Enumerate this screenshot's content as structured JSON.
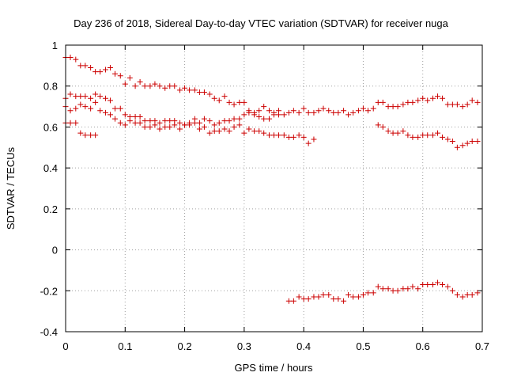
{
  "chart_data": {
    "type": "scatter",
    "title": "Day 236 of 2018, Sidereal Day-to-day VTEC variation (SDTVAR) for receiver nuga",
    "xlabel": "GPS time / hours",
    "ylabel": "SDTVAR / TECUs",
    "xlim": [
      0,
      0.7
    ],
    "ylim": [
      -0.4,
      1
    ],
    "xticks": [
      "0",
      "0.1",
      "0.2",
      "0.3",
      "0.4",
      "0.5",
      "0.6",
      "0.7"
    ],
    "yticks": [
      "-0.4",
      "-0.2",
      "0",
      "0.2",
      "0.4",
      "0.6",
      "0.8",
      "1"
    ],
    "grid": true,
    "marker": "+",
    "color": "#cc0000",
    "series": [
      {
        "name": "series-1",
        "x": [
          0.0,
          0.008,
          0.017,
          0.025,
          0.033,
          0.042,
          0.05,
          0.058,
          0.067,
          0.075,
          0.083,
          0.092,
          0.1,
          0.108,
          0.117,
          0.125,
          0.133,
          0.142,
          0.15,
          0.158,
          0.167,
          0.175,
          0.183,
          0.192,
          0.2,
          0.208,
          0.217,
          0.225,
          0.233,
          0.242,
          0.25,
          0.258,
          0.267,
          0.275,
          0.283,
          0.292,
          0.3,
          0.308,
          0.317,
          0.325,
          0.333,
          0.342,
          0.35,
          0.358,
          0.367,
          0.375,
          0.383,
          0.392,
          0.4,
          0.408,
          0.417,
          0.425,
          0.433,
          0.442,
          0.45,
          0.458,
          0.467,
          0.475,
          0.483,
          0.492,
          0.5,
          0.508,
          0.517,
          0.525,
          0.533,
          0.542,
          0.55,
          0.558,
          0.567,
          0.575,
          0.583,
          0.592,
          0.6,
          0.608,
          0.617,
          0.625,
          0.633,
          0.642,
          0.65,
          0.658,
          0.667,
          0.675,
          0.683,
          0.692
        ],
        "y": [
          0.94,
          0.94,
          0.93,
          0.9,
          0.9,
          0.89,
          0.87,
          0.87,
          0.88,
          0.89,
          0.86,
          0.85,
          0.81,
          0.84,
          0.8,
          0.82,
          0.8,
          0.8,
          0.81,
          0.8,
          0.79,
          0.8,
          0.8,
          0.78,
          0.79,
          0.78,
          0.78,
          0.77,
          0.77,
          0.76,
          0.74,
          0.73,
          0.75,
          0.72,
          0.71,
          0.72,
          0.72,
          0.68,
          0.67,
          0.68,
          0.7,
          0.68,
          0.67,
          0.68,
          0.66,
          0.67,
          0.68,
          0.67,
          0.69,
          0.67,
          0.67,
          0.68,
          0.69,
          0.68,
          0.67,
          0.67,
          0.68,
          0.66,
          0.67,
          0.68,
          0.69,
          0.68,
          0.69,
          0.72,
          0.72,
          0.7,
          0.7,
          0.7,
          0.71,
          0.72,
          0.72,
          0.73,
          0.74,
          0.73,
          0.74,
          0.75,
          0.74,
          0.71,
          0.71,
          0.71,
          0.7,
          0.71,
          0.73,
          0.72
        ]
      },
      {
        "name": "series-2",
        "x": [
          0.0,
          0.008,
          0.017,
          0.025,
          0.033,
          0.042,
          0.05,
          0.058,
          0.067,
          0.075,
          0.083,
          0.092,
          0.1,
          0.108,
          0.117,
          0.125,
          0.133,
          0.142,
          0.15,
          0.158,
          0.167,
          0.175,
          0.183,
          0.192,
          0.2,
          0.208,
          0.217,
          0.225,
          0.233,
          0.242,
          0.25,
          0.258,
          0.267,
          0.275,
          0.283,
          0.292,
          0.3,
          0.308,
          0.317,
          0.325,
          0.333,
          0.342,
          0.35,
          0.358
        ],
        "y": [
          0.74,
          0.76,
          0.75,
          0.75,
          0.75,
          0.74,
          0.76,
          0.75,
          0.74,
          0.73,
          0.69,
          0.69,
          0.66,
          0.65,
          0.65,
          0.65,
          0.63,
          0.63,
          0.63,
          0.62,
          0.63,
          0.63,
          0.63,
          0.62,
          0.61,
          0.62,
          0.64,
          0.62,
          0.64,
          0.63,
          0.61,
          0.62,
          0.63,
          0.63,
          0.64,
          0.64,
          0.66,
          0.67,
          0.66,
          0.65,
          0.64,
          0.64,
          0.66,
          0.66
        ]
      },
      {
        "name": "series-3",
        "x": [
          0.0,
          0.008,
          0.017,
          0.025,
          0.033,
          0.042,
          0.05,
          0.058,
          0.067,
          0.075,
          0.083,
          0.092,
          0.1,
          0.108,
          0.117,
          0.125,
          0.133,
          0.142,
          0.15,
          0.158,
          0.167,
          0.175,
          0.183,
          0.192,
          0.2,
          0.208,
          0.217,
          0.225,
          0.233,
          0.242,
          0.25,
          0.258,
          0.267,
          0.275,
          0.283,
          0.292,
          0.3,
          0.308,
          0.317,
          0.325
        ],
        "y": [
          0.7,
          0.68,
          0.69,
          0.71,
          0.7,
          0.69,
          0.72,
          0.68,
          0.67,
          0.66,
          0.64,
          0.62,
          0.61,
          0.63,
          0.62,
          0.62,
          0.6,
          0.6,
          0.61,
          0.59,
          0.6,
          0.6,
          0.61,
          0.59,
          0.61,
          0.61,
          0.62,
          0.59,
          0.6,
          0.57,
          0.58,
          0.58,
          0.59,
          0.58,
          0.6,
          0.61,
          0.57,
          0.59,
          0.58,
          0.58
        ]
      },
      {
        "name": "series-4",
        "x": [
          0.0,
          0.008,
          0.017,
          0.025,
          0.033,
          0.042,
          0.05
        ],
        "y": [
          0.62,
          0.62,
          0.62,
          0.57,
          0.56,
          0.56,
          0.56
        ]
      },
      {
        "name": "series-5",
        "x": [
          0.333,
          0.342,
          0.35,
          0.358,
          0.367,
          0.375,
          0.383,
          0.392,
          0.4,
          0.408,
          0.417,
          0.525,
          0.533,
          0.542,
          0.55,
          0.558,
          0.567,
          0.575,
          0.583,
          0.592,
          0.6,
          0.608,
          0.617,
          0.625,
          0.633,
          0.642,
          0.65,
          0.658,
          0.667,
          0.675,
          0.683,
          0.692
        ],
        "y": [
          0.57,
          0.56,
          0.56,
          0.56,
          0.56,
          0.55,
          0.55,
          0.56,
          0.55,
          0.52,
          0.54,
          0.61,
          0.6,
          0.58,
          0.57,
          0.57,
          0.58,
          0.56,
          0.55,
          0.55,
          0.56,
          0.56,
          0.56,
          0.57,
          0.55,
          0.54,
          0.53,
          0.5,
          0.51,
          0.52,
          0.53,
          0.53
        ]
      },
      {
        "name": "series-6",
        "x": [
          0.375,
          0.383,
          0.392,
          0.4,
          0.408,
          0.417,
          0.425,
          0.433,
          0.442,
          0.45,
          0.458,
          0.467,
          0.475,
          0.483,
          0.492,
          0.5,
          0.508,
          0.517,
          0.525,
          0.533,
          0.542,
          0.55,
          0.558,
          0.567,
          0.575,
          0.583,
          0.592,
          0.6,
          0.608,
          0.617,
          0.625,
          0.633,
          0.642,
          0.65,
          0.658,
          0.667,
          0.675,
          0.683,
          0.692
        ],
        "y": [
          -0.25,
          -0.25,
          -0.23,
          -0.24,
          -0.24,
          -0.23,
          -0.23,
          -0.22,
          -0.22,
          -0.24,
          -0.24,
          -0.25,
          -0.22,
          -0.23,
          -0.23,
          -0.22,
          -0.21,
          -0.21,
          -0.18,
          -0.19,
          -0.19,
          -0.2,
          -0.2,
          -0.19,
          -0.19,
          -0.18,
          -0.19,
          -0.17,
          -0.17,
          -0.17,
          -0.16,
          -0.17,
          -0.18,
          -0.2,
          -0.22,
          -0.23,
          -0.22,
          -0.22,
          -0.21
        ]
      }
    ]
  }
}
